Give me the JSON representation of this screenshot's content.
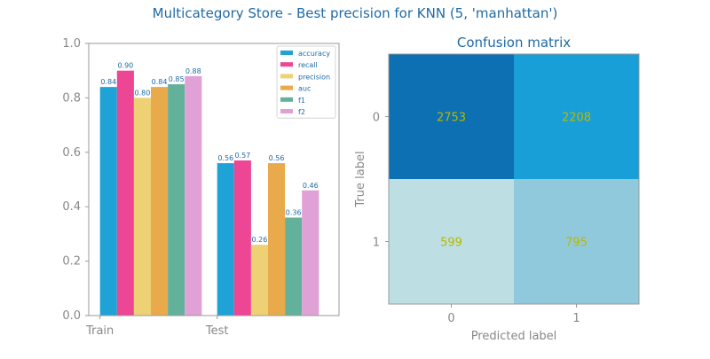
{
  "figure": {
    "title": "Multicategory Store - Best precision for KNN (5, 'manhattan')"
  },
  "colors": {
    "title": "#1f6aa5",
    "axis_text": "#888888",
    "spine": "#999999",
    "cell_text": "#b8b800",
    "bar_label": "#1f6aa5",
    "legend_text": "#1f6aa5"
  },
  "chart_data": [
    {
      "type": "bar",
      "title": "",
      "xlabel": "",
      "ylabel": "",
      "categories": [
        "Train",
        "Test"
      ],
      "ylim": [
        0,
        1
      ],
      "yticks": [
        "0.0",
        "0.2",
        "0.4",
        "0.6",
        "0.8",
        "1.0"
      ],
      "legend_position": "top-right",
      "grid": false,
      "series": [
        {
          "name": "accuracy",
          "color": "#1fa3d6",
          "values": [
            0.84,
            0.56
          ],
          "labels": [
            "0.84",
            "0.56"
          ]
        },
        {
          "name": "recall",
          "color": "#ec4694",
          "values": [
            0.9,
            0.57
          ],
          "labels": [
            "0.90",
            "0.57"
          ]
        },
        {
          "name": "precision",
          "color": "#edd174",
          "values": [
            0.8,
            0.26
          ],
          "labels": [
            "0.80",
            "0.26"
          ]
        },
        {
          "name": "auc",
          "color": "#e8aa4a",
          "values": [
            0.84,
            0.56
          ],
          "labels": [
            "0.84",
            "0.56"
          ]
        },
        {
          "name": "f1",
          "color": "#63b19b",
          "values": [
            0.85,
            0.36
          ],
          "labels": [
            "0.85",
            "0.36"
          ]
        },
        {
          "name": "f2",
          "color": "#e0a1d6",
          "values": [
            0.88,
            0.46
          ],
          "labels": [
            "0.88",
            "0.46"
          ]
        }
      ]
    },
    {
      "type": "heatmap",
      "title": "Confusion matrix",
      "xlabel": "Predicted label",
      "ylabel": "True label",
      "x_categories": [
        "0",
        "1"
      ],
      "y_categories": [
        "0",
        "1"
      ],
      "values": [
        [
          2753,
          2208
        ],
        [
          599,
          795
        ]
      ],
      "cell_colors": [
        [
          "#0c70b2",
          "#199fd8"
        ],
        [
          "#bddfe3",
          "#91c9dc"
        ]
      ]
    }
  ]
}
